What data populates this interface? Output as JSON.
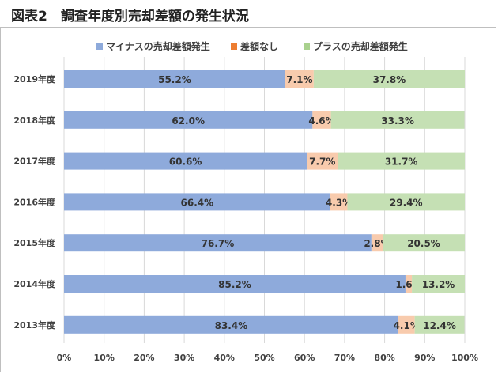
{
  "title": "図表2　調査年度別売却差額の発生状況",
  "chart_data": {
    "type": "bar",
    "orientation": "horizontal",
    "stacked": true,
    "percent": true,
    "categories": [
      "2019年度",
      "2018年度",
      "2017年度",
      "2016年度",
      "2015年度",
      "2014年度",
      "2013年度"
    ],
    "series": [
      {
        "name": "マイナスの売却差額発生",
        "color": "#8eaadb",
        "values": [
          55.2,
          62.0,
          60.6,
          66.4,
          76.7,
          85.2,
          83.4
        ],
        "labels": [
          "55.2%",
          "62.0%",
          "60.6%",
          "66.4%",
          "76.7%",
          "85.2%",
          "83.4%"
        ]
      },
      {
        "name": "差額なし",
        "color": "#f8cbad",
        "values": [
          7.1,
          4.6,
          7.7,
          4.3,
          2.8,
          1.6,
          4.1
        ],
        "labels": [
          "7.1%",
          "4.6%",
          "7.7%",
          "4.3%",
          "2.8%",
          "1.6%",
          "4.1%"
        ]
      },
      {
        "name": "プラスの売却差額発生",
        "color": "#c5e0b4",
        "values": [
          37.8,
          33.3,
          31.7,
          29.4,
          20.5,
          13.2,
          12.4
        ],
        "labels": [
          "37.8%",
          "33.3%",
          "31.7%",
          "29.4%",
          "20.5%",
          "13.2%",
          "12.4%"
        ]
      }
    ],
    "legend_marker_colors": [
      "#8eaadb",
      "#ed7d31",
      "#a9d18e"
    ],
    "xlim": [
      0,
      100
    ],
    "xticks": [
      "0%",
      "10%",
      "20%",
      "30%",
      "40%",
      "50%",
      "60%",
      "70%",
      "80%",
      "90%",
      "100%"
    ],
    "legend_position": "top",
    "grid": true
  }
}
